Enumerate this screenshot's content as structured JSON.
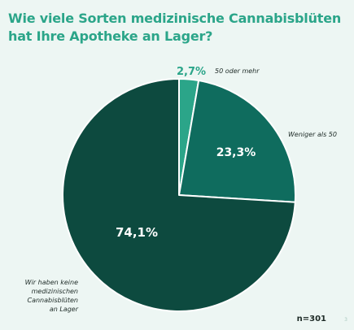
{
  "title": {
    "line1": "Wie viele Sorten medizinische Cannabisblüten",
    "line2": "hat Ihre Apotheke an Lager?"
  },
  "colors": {
    "background": "#EDF6F3",
    "title": "#2BA589",
    "slice_small": "#2BA589",
    "slice_medium": "#0F6C5E",
    "slice_large": "#0D4A3F",
    "pct_small_text": "#2BA589",
    "pct_on_dark_text": "#FFFFFF"
  },
  "chart_data": {
    "type": "pie",
    "title": "Wie viele Sorten medizinische Cannabisblüten hat Ihre Apotheke an Lager?",
    "slices": [
      {
        "label": "50 oder mehr",
        "value": 2.7,
        "display": "2,7%"
      },
      {
        "label": "Weniger als 50",
        "value": 23.3,
        "display": "23,3%"
      },
      {
        "label": "Wir haben keine medizinischen Cannabisblüten an Lager",
        "label_lines": [
          "Wir haben keine",
          "medizinischen",
          "Cannabisblüten",
          "an Lager"
        ],
        "value": 74.1,
        "display": "74,1%"
      }
    ],
    "start_angle": "top",
    "direction": "clockwise",
    "legend": "none"
  },
  "footer": {
    "sample": "n=301",
    "page": "3"
  }
}
